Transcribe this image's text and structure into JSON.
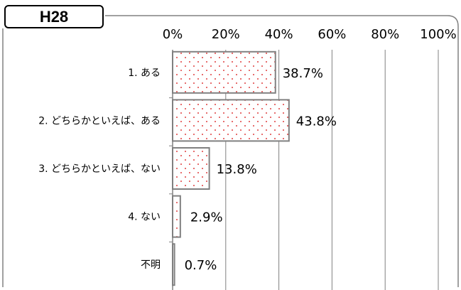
{
  "chart_data": {
    "type": "bar",
    "orientation": "horizontal",
    "tag": "H28",
    "categories": [
      "1. ある",
      "2. どちらかといえば、ある",
      "3. どちらかといえば、ない",
      "4. ない",
      "不明"
    ],
    "values": [
      38.7,
      43.8,
      13.8,
      2.9,
      0.7
    ],
    "value_labels": [
      "38.7%",
      "43.8%",
      "13.8%",
      "2.9%",
      "0.7%"
    ],
    "xlim": [
      0,
      100
    ],
    "xticks": [
      "0%",
      "20%",
      "40%",
      "60%",
      "80%",
      "100%"
    ],
    "grid": true,
    "bar_fill": "#ffffff",
    "bar_pattern": "dots",
    "dot_color": "#e04040",
    "bar_edge": "#808080"
  }
}
